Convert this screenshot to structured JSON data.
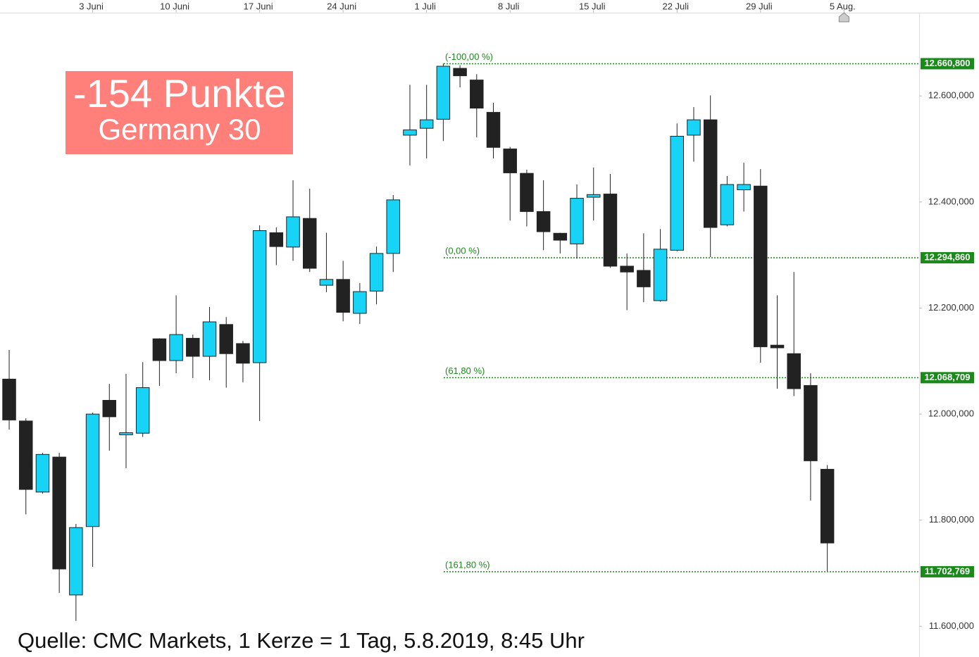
{
  "chart_data": {
    "type": "candlestick",
    "x": [
      0,
      1,
      2,
      3,
      4,
      5,
      6,
      7,
      8,
      9,
      10,
      11,
      12,
      13,
      14,
      15,
      16,
      17,
      18,
      19,
      20,
      21,
      22,
      23,
      24,
      25,
      26,
      27,
      28,
      29,
      30,
      31,
      32,
      33,
      34,
      35,
      36,
      37,
      38,
      39,
      40,
      41,
      42,
      43,
      44,
      45,
      46,
      47,
      48,
      49
    ],
    "open": [
      12066,
      11987,
      11853,
      11919,
      11659,
      11788,
      12026,
      11961,
      11964,
      12142,
      12101,
      12143,
      12109,
      12169,
      12133,
      12097,
      12342,
      12315,
      12369,
      12243,
      12254,
      12190,
      12232,
      12303,
      12526,
      12539,
      12556,
      12652,
      12630,
      12569,
      12500,
      12454,
      12382,
      12341,
      12321,
      12409,
      12415,
      12279,
      12271,
      12214,
      12309,
      12526,
      12555,
      12357,
      12423,
      12430,
      12130,
      12114,
      12054,
      11896
    ],
    "high": [
      12121,
      11992,
      11927,
      11927,
      11793,
      12003,
      12057,
      12076,
      12098,
      12143,
      12224,
      12150,
      12202,
      12183,
      12138,
      12356,
      12352,
      12441,
      12425,
      12342,
      12289,
      12247,
      12316,
      12413,
      12621,
      12621,
      12661,
      12658,
      12641,
      12587,
      12504,
      12461,
      12441,
      12342,
      12433,
      12465,
      12453,
      12303,
      12341,
      12349,
      12548,
      12579,
      12601,
      12449,
      12474,
      12462,
      12224,
      12268,
      12077,
      11904
    ],
    "low": [
      11971,
      11811,
      11850,
      11663,
      11610,
      11712,
      11931,
      11898,
      11957,
      12053,
      12077,
      12068,
      12064,
      12050,
      12060,
      11987,
      12281,
      12289,
      12268,
      12230,
      12175,
      12170,
      12207,
      12268,
      12469,
      12482,
      12515,
      12616,
      12522,
      12482,
      12365,
      12354,
      12309,
      12303,
      12293,
      12365,
      12276,
      12196,
      12211,
      12212,
      12307,
      12476,
      12296,
      12354,
      12382,
      12097,
      12048,
      12034,
      11837,
      11704
    ],
    "close": [
      11989,
      11858,
      11924,
      11708,
      11786,
      12000,
      11995,
      11965,
      12050,
      12101,
      12150,
      12109,
      12174,
      12114,
      12096,
      12346,
      12316,
      12372,
      12275,
      12254,
      12192,
      12231,
      12303,
      12404,
      12536,
      12555,
      12656,
      12638,
      12577,
      12503,
      12455,
      12382,
      12344,
      12328,
      12407,
      12414,
      12279,
      12268,
      12240,
      12311,
      12524,
      12555,
      12352,
      12433,
      12433,
      12127,
      12125,
      12048,
      11912,
      11757
    ],
    "up_color": "#17d4f7",
    "down_color": "#222222",
    "xlim": [
      -0.55,
      54.5
    ],
    "xticks": [
      {
        "value": 5,
        "label": "3 Juni"
      },
      {
        "value": 10,
        "label": "10 Juni"
      },
      {
        "value": 15,
        "label": "17 Juni"
      },
      {
        "value": 20,
        "label": "24 Juni"
      },
      {
        "value": 25,
        "label": "1 Juli"
      },
      {
        "value": 30,
        "label": "8 Juli"
      },
      {
        "value": 35,
        "label": "15 Juli"
      },
      {
        "value": 40,
        "label": "22 Juli"
      },
      {
        "value": 45,
        "label": "29 Juli"
      },
      {
        "value": 50,
        "label": "5 Aug."
      }
    ],
    "ylim": [
      11542,
      12757
    ],
    "yticks": [
      {
        "value": 11600,
        "label": "11.600,000"
      },
      {
        "value": 11800,
        "label": "11.800,000"
      },
      {
        "value": 12000,
        "label": "12.000,000"
      },
      {
        "value": 12200,
        "label": "12.200,000"
      },
      {
        "value": 12400,
        "label": "12.400,000"
      },
      {
        "value": 12600,
        "label": "12.600,000"
      }
    ],
    "levels": [
      {
        "label": "(-100,00 %)",
        "value": 12660.8,
        "value_label": "12.660,800"
      },
      {
        "label": "(0,00 %)",
        "value": 12294.86,
        "value_label": "12.294,860"
      },
      {
        "label": "(61,80 %)",
        "value": 12068.709,
        "value_label": "12.068,709"
      },
      {
        "label": "(161,80 %)",
        "value": 11702.769,
        "value_label": "11.702,769"
      }
    ],
    "level_color": "#1a8a1a",
    "annotation": {
      "title": "-154 Punkte",
      "subtitle": "Germany 30"
    },
    "source": "Quelle: CMC Markets, 1 Kerze = 1 Tag, 5.8.2019, 8:45 Uhr"
  }
}
